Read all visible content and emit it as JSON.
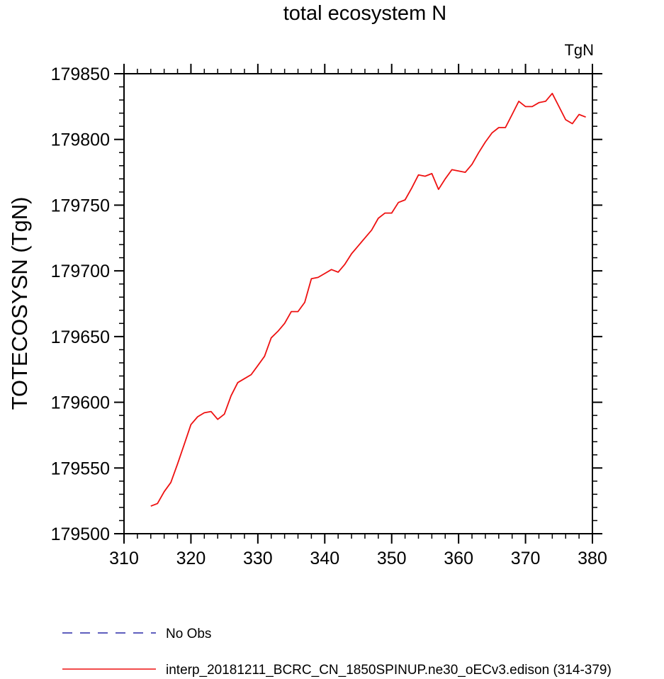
{
  "chart_data": {
    "type": "line",
    "title": "total ecosystem N",
    "units": "TgN",
    "xlabel": "",
    "ylabel": "TOTECOSYSN  (TgN)",
    "xlim": [
      310,
      380
    ],
    "ylim": [
      179500,
      179850
    ],
    "xticks": [
      310,
      320,
      330,
      340,
      350,
      360,
      370,
      380
    ],
    "yticks": [
      179500,
      179550,
      179600,
      179650,
      179700,
      179750,
      179800,
      179850
    ],
    "grid": false,
    "legend_position": "bottom-left",
    "series": [
      {
        "name": "No Obs",
        "color": "#2a2aa8",
        "dash": "dashed",
        "x": [],
        "y": []
      },
      {
        "name": "interp_20181211_BCRC_CN_1850SPINUP.ne30_oECv3.edison (314-379)",
        "color": "#ee1111",
        "dash": "solid",
        "x": [
          314,
          315,
          316,
          317,
          318,
          319,
          320,
          321,
          322,
          323,
          324,
          325,
          326,
          327,
          328,
          329,
          330,
          331,
          332,
          333,
          334,
          335,
          336,
          337,
          338,
          339,
          340,
          341,
          342,
          343,
          344,
          345,
          346,
          347,
          348,
          349,
          350,
          351,
          352,
          353,
          354,
          355,
          356,
          357,
          358,
          359,
          360,
          361,
          362,
          363,
          364,
          365,
          366,
          367,
          368,
          369,
          370,
          371,
          372,
          373,
          374,
          375,
          376,
          377,
          378,
          379
        ],
        "y": [
          179521,
          179523,
          179532,
          179539,
          179553,
          179568,
          179583,
          179589,
          179592,
          179593,
          179587,
          179591,
          179605,
          179615,
          179618,
          179621,
          179628,
          179635,
          179649,
          179654,
          179660,
          179669,
          179669,
          179676,
          179694,
          179695,
          179698,
          179701,
          179699,
          179705,
          179713,
          179719,
          179725,
          179731,
          179740,
          179744,
          179744,
          179752,
          179754,
          179763,
          179773,
          179772,
          179774,
          179762,
          179770,
          179777,
          179776,
          179775,
          179781,
          179790,
          179798,
          179805,
          179809,
          179809,
          179819,
          179829,
          179825,
          179825,
          179828,
          179829,
          179835,
          179825,
          179815,
          179812,
          179819,
          179817
        ]
      }
    ]
  }
}
